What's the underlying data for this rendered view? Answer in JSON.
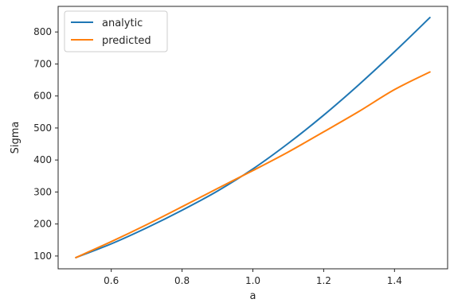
{
  "chart_data": {
    "type": "line",
    "xlabel": "a",
    "ylabel": "Sigma",
    "xlim": [
      0.45,
      1.55
    ],
    "ylim": [
      60,
      880
    ],
    "xticks": [
      0.6,
      0.8,
      1.0,
      1.2,
      1.4
    ],
    "xtick_labels": [
      "0.6",
      "0.8",
      "1.0",
      "1.2",
      "1.4"
    ],
    "yticks": [
      100,
      200,
      300,
      400,
      500,
      600,
      700,
      800
    ],
    "ytick_labels": [
      "100",
      "200",
      "300",
      "400",
      "500",
      "600",
      "700",
      "800"
    ],
    "grid": false,
    "legend_position": "top-left",
    "series": [
      {
        "name": "analytic",
        "color": "#1f77b4",
        "x": [
          0.5,
          0.6,
          0.7,
          0.8,
          0.9,
          1.0,
          1.1,
          1.2,
          1.3,
          1.4,
          1.5
        ],
        "y": [
          95,
          138,
          188,
          243,
          303,
          372,
          452,
          540,
          636,
          738,
          845
        ]
      },
      {
        "name": "predicted",
        "color": "#ff7f0e",
        "x": [
          0.5,
          0.6,
          0.7,
          0.8,
          0.9,
          1.0,
          1.1,
          1.2,
          1.3,
          1.4,
          1.5
        ],
        "y": [
          95,
          145,
          198,
          254,
          311,
          367,
          425,
          488,
          552,
          620,
          675
        ]
      }
    ]
  }
}
